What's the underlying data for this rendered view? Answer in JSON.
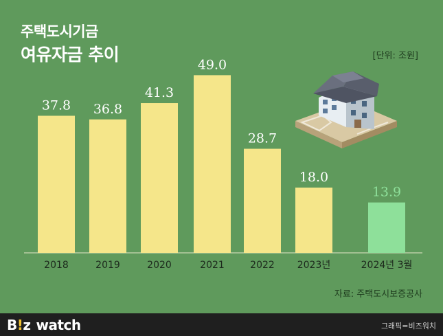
{
  "title_line1": "주택도시기금",
  "title_line2": "여유자금 추이",
  "unit": "[단위: 조원]",
  "source": "자료: 주택도시보증공사",
  "footer": {
    "logo_b": "B",
    "logo_bang": "!",
    "logo_z": "z",
    "logo_watch": "watch",
    "credit": "그래픽=비즈워치"
  },
  "colors": {
    "background": "#5f9a5c",
    "bar": "#f5e68a",
    "bar_highlight": "#8ee09a",
    "label": "#ffffff",
    "label_highlight": "#8ee09a",
    "footer": "#1f1f1f"
  },
  "chart_data": {
    "type": "bar",
    "categories": [
      "2018",
      "2019",
      "2020",
      "2021",
      "2022",
      "2023년",
      "2024년 3월"
    ],
    "values": [
      37.8,
      36.8,
      41.3,
      49.0,
      28.7,
      18.0,
      13.9
    ],
    "value_labels": [
      "37.8",
      "36.8",
      "41.3",
      "49.0",
      "28.7",
      "18.0",
      "13.9"
    ],
    "highlight_index": 6,
    "ylim": [
      0,
      54
    ]
  },
  "illustration": "house-icon"
}
